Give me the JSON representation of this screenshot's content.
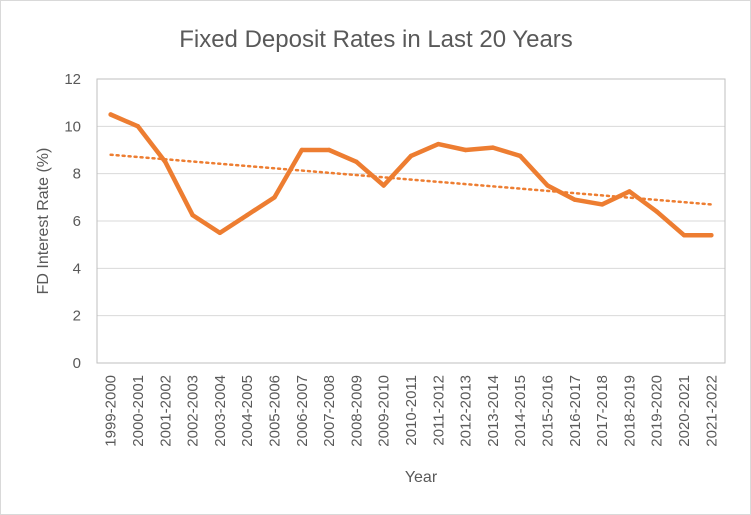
{
  "chart_data": {
    "type": "line",
    "title": "Fixed Deposit Rates in Last 20 Years",
    "xlabel": "Year",
    "ylabel": "FD Interest Rate (%)",
    "ylim": [
      0,
      12
    ],
    "yticks": [
      0,
      2,
      4,
      6,
      8,
      10,
      12
    ],
    "grid": true,
    "legend": "none",
    "categories": [
      "1999-2000",
      "2000-2001",
      "2001-2002",
      "2002-2003",
      "2003-2004",
      "2004-2005",
      "2005-2006",
      "2006-2007",
      "2007-2008",
      "2008-2009",
      "2009-2010",
      "2010-2011",
      "2011-2012",
      "2012-2013",
      "2013-2014",
      "2014-2015",
      "2015-2016",
      "2016-2017",
      "2017-2018",
      "2018-2019",
      "2019-2020",
      "2020-2021",
      "2021-2022"
    ],
    "series": [
      {
        "values": [
          10.5,
          10.0,
          8.5,
          6.25,
          5.5,
          6.25,
          7.0,
          9.0,
          9.0,
          8.5,
          7.5,
          8.75,
          9.25,
          9.0,
          9.1,
          8.75,
          7.5,
          6.9,
          6.7,
          7.25,
          6.4,
          5.4,
          5.4
        ],
        "color": "#ed7d31"
      }
    ],
    "trendline": {
      "type": "linear",
      "style": "dotted",
      "color": "#ed7d31",
      "start_value": 8.8,
      "end_value": 6.7
    }
  }
}
